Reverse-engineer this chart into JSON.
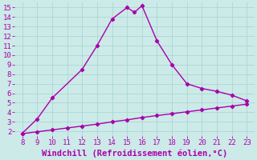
{
  "line1_x": [
    8,
    9,
    10,
    12,
    13,
    14,
    15,
    15.5,
    16,
    17,
    18,
    19,
    20,
    21,
    22,
    23
  ],
  "line1_y": [
    1.8,
    3.3,
    5.5,
    8.5,
    11.0,
    13.8,
    15.0,
    14.5,
    15.2,
    11.5,
    9.0,
    7.0,
    6.5,
    6.2,
    5.8,
    5.2
  ],
  "line2_x": [
    8,
    9,
    10,
    11,
    12,
    13,
    14,
    15,
    16,
    17,
    18,
    19,
    20,
    21,
    22,
    23
  ],
  "line2_y": [
    1.75,
    1.95,
    2.15,
    2.35,
    2.55,
    2.75,
    3.0,
    3.2,
    3.45,
    3.65,
    3.85,
    4.05,
    4.25,
    4.45,
    4.65,
    4.85
  ],
  "line_color": "#aa00aa",
  "bg_color": "#cceae8",
  "grid_color": "#aad8d5",
  "xlabel": "Windchill (Refroidissement éolien,°C)",
  "xlim": [
    7.5,
    23.5
  ],
  "ylim": [
    1.5,
    15.5
  ],
  "xticks": [
    8,
    9,
    10,
    11,
    12,
    13,
    14,
    15,
    16,
    17,
    18,
    19,
    20,
    21,
    22,
    23
  ],
  "yticks": [
    2,
    3,
    4,
    5,
    6,
    7,
    8,
    9,
    10,
    11,
    12,
    13,
    14,
    15
  ],
  "xlabel_fontsize": 7.5,
  "tick_fontsize": 6.5,
  "marker": "D",
  "marker_size": 2.2,
  "line_width": 1.0
}
